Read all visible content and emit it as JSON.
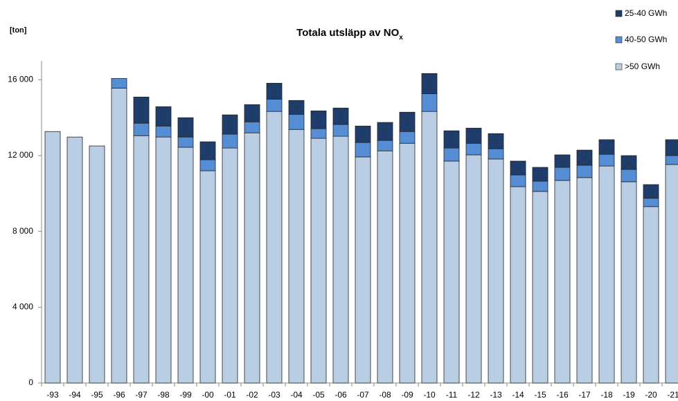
{
  "chart_data": {
    "type": "stacked_bar",
    "title": "Totala utsläpp av NO",
    "title_subscript": "x",
    "y_label": "[ton]",
    "categories": [
      "-93",
      "-94",
      "-95",
      "-96",
      "-97",
      "-98",
      "-99",
      "-00",
      "-01",
      "-02",
      "-03",
      "-04",
      "-05",
      "-06",
      "-07",
      "-08",
      "-09",
      "-10",
      "-11",
      "-12",
      "-13",
      "-14",
      "-15",
      "-16",
      "-17",
      "-18",
      "-19",
      "-20",
      "-21"
    ],
    "series": [
      {
        "name": ">50 GWh",
        "color": "#b9cde5",
        "values": [
          13270,
          12980,
          12510,
          15560,
          13050,
          12980,
          12440,
          11200,
          12400,
          13200,
          14330,
          13380,
          12910,
          13020,
          11930,
          12250,
          12650,
          14330,
          11710,
          12040,
          11820,
          10360,
          10110,
          10690,
          10840,
          11450,
          10620,
          9310,
          11530
        ]
      },
      {
        "name": "40-50 GWh",
        "color": "#558ed5",
        "values": [
          null,
          null,
          null,
          510,
          660,
          580,
          540,
          580,
          730,
          580,
          650,
          800,
          510,
          620,
          760,
          550,
          620,
          940,
          690,
          610,
          540,
          620,
          540,
          690,
          650,
          620,
          650,
          440,
          470
        ]
      },
      {
        "name": "25-40 GWh",
        "color": "#1f3d6b",
        "values": [
          null,
          null,
          null,
          null,
          1380,
          1020,
          1020,
          950,
          1020,
          910,
          840,
          730,
          940,
          870,
          870,
          950,
          1020,
          1060,
          910,
          800,
          800,
          730,
          730,
          660,
          800,
          770,
          730,
          720,
          840
        ]
      }
    ],
    "ylim": [
      0,
      17000
    ],
    "yticks": [
      0,
      {
        "value": 4000,
        "label": "4 000"
      },
      {
        "value": 8000,
        "label": "8 000"
      },
      {
        "value": 12000,
        "label": "12 000"
      },
      {
        "value": 16000,
        "label": "16 000"
      }
    ],
    "grid": false,
    "legend": "top-right"
  }
}
